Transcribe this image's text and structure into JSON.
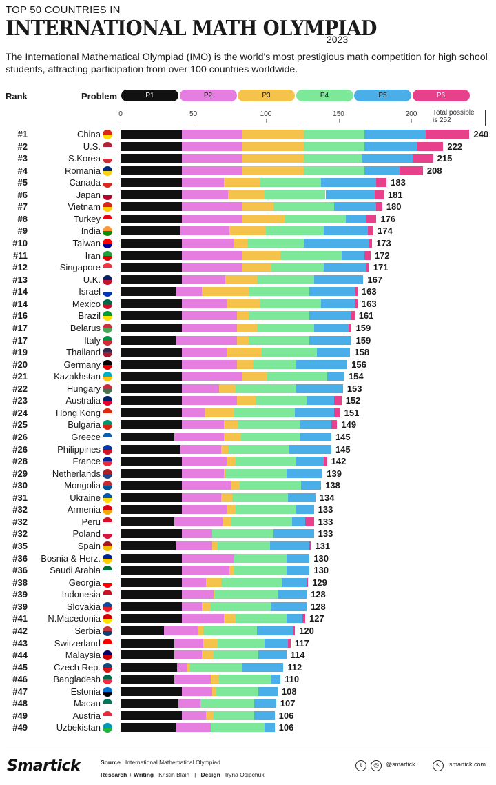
{
  "header": {
    "pre_title": "TOP 50 COUNTRIES IN",
    "title": "INTERNATIONAL MATH OLYMPIAD",
    "year": "2023",
    "intro": "The International Mathematical Olympiad (IMO) is the world's most prestigious math competition for high school students, attracting participation from over 100 countries worldwide."
  },
  "legend": {
    "rank_label": "Rank",
    "problem_label": "Problem",
    "items": [
      {
        "label": "P1",
        "color": "#111111",
        "text_color": "#ffffff"
      },
      {
        "label": "P2",
        "color": "#e57ee0",
        "text_color": "#1a1a1a"
      },
      {
        "label": "P3",
        "color": "#f5c24c",
        "text_color": "#1a1a1a"
      },
      {
        "label": "P4",
        "color": "#7ee89a",
        "text_color": "#1a1a1a"
      },
      {
        "label": "P5",
        "color": "#4aaee8",
        "text_color": "#1a1a1a"
      },
      {
        "label": "P6",
        "color": "#e8418c",
        "text_color": "#ffffff"
      }
    ]
  },
  "chart_data": {
    "type": "bar",
    "orientation": "horizontal",
    "stacked": true,
    "title": "INTERNATIONAL MATH OLYMPIAD",
    "subtitle": "TOP 50 COUNTRIES IN",
    "x_ticks": [
      "0",
      "50",
      "100",
      "150",
      "200"
    ],
    "xlim": [
      0,
      252
    ],
    "total_note_line1": "Total possible",
    "total_note_line2": "is 252",
    "series_names": [
      "P1",
      "P2",
      "P3",
      "P4",
      "P5",
      "P6"
    ],
    "rows": [
      {
        "rank": "#1",
        "country": "China",
        "flag": [
          "#de2910",
          "#ffde00"
        ],
        "values": [
          42,
          42,
          42,
          42,
          42,
          30
        ],
        "total": "240"
      },
      {
        "rank": "#2",
        "country": "U.S.",
        "flag": [
          "#b22234",
          "#ffffff"
        ],
        "values": [
          42,
          42,
          42,
          42,
          36,
          18
        ],
        "total": "222"
      },
      {
        "rank": "#3",
        "country": "S.Korea",
        "flag": [
          "#ffffff",
          "#cd2e3a"
        ],
        "values": [
          42,
          42,
          42,
          40,
          35,
          14
        ],
        "total": "215"
      },
      {
        "rank": "#4",
        "country": "Romania",
        "flag": [
          "#002b7f",
          "#fcd116"
        ],
        "values": [
          42,
          42,
          42,
          42,
          24,
          16
        ],
        "total": "208"
      },
      {
        "rank": "#5",
        "country": "Canada",
        "flag": [
          "#ffffff",
          "#d52b1e"
        ],
        "values": [
          42,
          29,
          25,
          42,
          38,
          7
        ],
        "total": "183"
      },
      {
        "rank": "#6",
        "country": "Japan",
        "flag": [
          "#ffffff",
          "#bc002d"
        ],
        "values": [
          42,
          32,
          25,
          42,
          34,
          6
        ],
        "total": "181"
      },
      {
        "rank": "#7",
        "country": "Vietnam",
        "flag": [
          "#da251d",
          "#ffcd00"
        ],
        "values": [
          42,
          42,
          21,
          42,
          29,
          4
        ],
        "total": "180"
      },
      {
        "rank": "#8",
        "country": "Turkey",
        "flag": [
          "#e30a17",
          "#ffffff"
        ],
        "values": [
          42,
          42,
          29,
          42,
          14,
          7
        ],
        "total": "176"
      },
      {
        "rank": "#9",
        "country": "India",
        "flag": [
          "#ff9933",
          "#138808"
        ],
        "values": [
          41,
          34,
          25,
          40,
          30,
          4
        ],
        "total": "174"
      },
      {
        "rank": "#10",
        "country": "Taiwan",
        "flag": [
          "#fe0000",
          "#000095"
        ],
        "values": [
          42,
          36,
          9,
          39,
          45,
          2
        ],
        "total": "173"
      },
      {
        "rank": "#11",
        "country": "Iran",
        "flag": [
          "#239f40",
          "#da0000"
        ],
        "values": [
          42,
          42,
          26,
          42,
          16,
          4
        ],
        "total": "172"
      },
      {
        "rank": "#12",
        "country": "Singapore",
        "flag": [
          "#ef3340",
          "#ffffff"
        ],
        "values": [
          42,
          42,
          20,
          36,
          29,
          2
        ],
        "total": "171"
      },
      {
        "rank": "#13",
        "country": "U.K.",
        "flag": [
          "#012169",
          "#c8102e"
        ],
        "values": [
          42,
          30,
          22,
          39,
          34,
          0
        ],
        "total": "167"
      },
      {
        "rank": "#14",
        "country": "Israel",
        "flag": [
          "#ffffff",
          "#0038b8"
        ],
        "values": [
          38,
          18,
          32,
          42,
          31,
          2
        ],
        "total": "163"
      },
      {
        "rank": "#14",
        "country": "Mexico",
        "flag": [
          "#006847",
          "#ce1126"
        ],
        "values": [
          42,
          31,
          23,
          42,
          23,
          2
        ],
        "total": "163"
      },
      {
        "rank": "#16",
        "country": "Brazil",
        "flag": [
          "#009c3b",
          "#ffdf00"
        ],
        "values": [
          42,
          38,
          8,
          42,
          29,
          2
        ],
        "total": "161"
      },
      {
        "rank": "#17",
        "country": "Belarus",
        "flag": [
          "#c8313e",
          "#4aa657"
        ],
        "values": [
          42,
          38,
          14,
          39,
          24,
          2
        ],
        "total": "159"
      },
      {
        "rank": "#17",
        "country": "Italy",
        "flag": [
          "#009246",
          "#ce2b37"
        ],
        "values": [
          38,
          42,
          8,
          42,
          29,
          0
        ],
        "total": "159"
      },
      {
        "rank": "#19",
        "country": "Thailand",
        "flag": [
          "#2d2a4a",
          "#a51931"
        ],
        "values": [
          42,
          31,
          24,
          38,
          23,
          0
        ],
        "total": "158"
      },
      {
        "rank": "#20",
        "country": "Germany",
        "flag": [
          "#000000",
          "#dd0000"
        ],
        "values": [
          42,
          38,
          11,
          30,
          35,
          0
        ],
        "total": "156"
      },
      {
        "rank": "#21",
        "country": "Kazakhstan",
        "flag": [
          "#00afca",
          "#fec50c"
        ],
        "values": [
          42,
          42,
          17,
          41,
          12,
          0
        ],
        "total": "154"
      },
      {
        "rank": "#22",
        "country": "Hungary",
        "flag": [
          "#cd2a3e",
          "#436f4d"
        ],
        "values": [
          42,
          26,
          11,
          42,
          32,
          0
        ],
        "total": "153"
      },
      {
        "rank": "#23",
        "country": "Australia",
        "flag": [
          "#012169",
          "#e4002b"
        ],
        "values": [
          42,
          38,
          13,
          35,
          19,
          5
        ],
        "total": "152"
      },
      {
        "rank": "#24",
        "country": "Hong Kong",
        "flag": [
          "#de2910",
          "#ffffff"
        ],
        "values": [
          42,
          16,
          20,
          42,
          27,
          4
        ],
        "total": "151"
      },
      {
        "rank": "#25",
        "country": "Bulgaria",
        "flag": [
          "#00966e",
          "#d62612"
        ],
        "values": [
          42,
          29,
          10,
          42,
          22,
          4
        ],
        "total": "149"
      },
      {
        "rank": "#26",
        "country": "Greece",
        "flag": [
          "#0d5eaf",
          "#ffffff"
        ],
        "values": [
          37,
          34,
          12,
          40,
          22,
          0
        ],
        "total": "145"
      },
      {
        "rank": "#26",
        "country": "Philippines",
        "flag": [
          "#0038a8",
          "#ce1126"
        ],
        "values": [
          41,
          28,
          5,
          42,
          29,
          0
        ],
        "total": "145"
      },
      {
        "rank": "#28",
        "country": "France",
        "flag": [
          "#002395",
          "#ed2939"
        ],
        "values": [
          42,
          31,
          6,
          42,
          19,
          2
        ],
        "total": "142"
      },
      {
        "rank": "#29",
        "country": "Netherlands",
        "flag": [
          "#ae1c28",
          "#21468b"
        ],
        "values": [
          42,
          29,
          1,
          42,
          25,
          0
        ],
        "total": "139"
      },
      {
        "rank": "#30",
        "country": "Mongolia",
        "flag": [
          "#c4272f",
          "#015197"
        ],
        "values": [
          42,
          34,
          6,
          42,
          14,
          0
        ],
        "total": "138"
      },
      {
        "rank": "#31",
        "country": "Ukraine",
        "flag": [
          "#0057b7",
          "#ffd700"
        ],
        "values": [
          42,
          27,
          8,
          38,
          19,
          0
        ],
        "total": "134"
      },
      {
        "rank": "#32",
        "country": "Armenia",
        "flag": [
          "#d90012",
          "#f2a800"
        ],
        "values": [
          42,
          31,
          6,
          42,
          12,
          0
        ],
        "total": "133"
      },
      {
        "rank": "#32",
        "country": "Peru",
        "flag": [
          "#d91023",
          "#ffffff"
        ],
        "values": [
          37,
          33,
          6,
          42,
          9,
          6
        ],
        "total": "133"
      },
      {
        "rank": "#32",
        "country": "Poland",
        "flag": [
          "#ffffff",
          "#dc143c"
        ],
        "values": [
          42,
          21,
          0,
          42,
          28,
          0
        ],
        "total": "133"
      },
      {
        "rank": "#35",
        "country": "Spain",
        "flag": [
          "#aa151b",
          "#f1bf00"
        ],
        "values": [
          38,
          25,
          4,
          36,
          27,
          1
        ],
        "total": "131"
      },
      {
        "rank": "#36",
        "country": "Bosnia & Herz.",
        "flag": [
          "#002395",
          "#fecb00"
        ],
        "values": [
          42,
          36,
          0,
          36,
          16,
          0
        ],
        "total": "130"
      },
      {
        "rank": "#36",
        "country": "Saudi Arabia",
        "flag": [
          "#006c35",
          "#ffffff"
        ],
        "values": [
          42,
          33,
          3,
          36,
          16,
          0
        ],
        "total": "130"
      },
      {
        "rank": "#38",
        "country": "Georgia",
        "flag": [
          "#ffffff",
          "#ff0000"
        ],
        "values": [
          42,
          17,
          10,
          42,
          17,
          1
        ],
        "total": "129"
      },
      {
        "rank": "#39",
        "country": "Indonesia",
        "flag": [
          "#ce1126",
          "#ffffff"
        ],
        "values": [
          42,
          22,
          1,
          43,
          20,
          0
        ],
        "total": "128"
      },
      {
        "rank": "#39",
        "country": "Slovakia",
        "flag": [
          "#0b4ea2",
          "#ee1c25"
        ],
        "values": [
          42,
          14,
          6,
          42,
          24,
          0
        ],
        "total": "128"
      },
      {
        "rank": "#41",
        "country": "N.Macedonia",
        "flag": [
          "#d20000",
          "#ffe600"
        ],
        "values": [
          42,
          29,
          8,
          35,
          11,
          2
        ],
        "total": "127"
      },
      {
        "rank": "#42",
        "country": "Serbia",
        "flag": [
          "#c6363c",
          "#0c4076"
        ],
        "values": [
          30,
          23,
          4,
          37,
          25,
          1
        ],
        "total": "120"
      },
      {
        "rank": "#43",
        "country": "Switzerland",
        "flag": [
          "#ff0000",
          "#ffffff"
        ],
        "values": [
          37,
          20,
          10,
          32,
          16,
          2
        ],
        "total": "117"
      },
      {
        "rank": "#44",
        "country": "Malaysia",
        "flag": [
          "#010066",
          "#cc0001"
        ],
        "values": [
          37,
          19,
          8,
          31,
          19,
          0
        ],
        "total": "114"
      },
      {
        "rank": "#45",
        "country": "Czech Rep.",
        "flag": [
          "#11457e",
          "#d7141a"
        ],
        "values": [
          39,
          7,
          2,
          36,
          28,
          0
        ],
        "total": "112"
      },
      {
        "rank": "#46",
        "country": "Bangladesh",
        "flag": [
          "#006a4e",
          "#f42a41"
        ],
        "values": [
          37,
          25,
          6,
          36,
          6,
          0
        ],
        "total": "110"
      },
      {
        "rank": "#47",
        "country": "Estonia",
        "flag": [
          "#0072ce",
          "#000000"
        ],
        "values": [
          42,
          21,
          3,
          29,
          13,
          0
        ],
        "total": "108"
      },
      {
        "rank": "#48",
        "country": "Macau",
        "flag": [
          "#00785e",
          "#ffffff"
        ],
        "values": [
          40,
          15,
          0,
          37,
          15,
          0
        ],
        "total": "107"
      },
      {
        "rank": "#49",
        "country": "Austria",
        "flag": [
          "#ed2939",
          "#ffffff"
        ],
        "values": [
          42,
          17,
          5,
          28,
          14,
          0
        ],
        "total": "106"
      },
      {
        "rank": "#49",
        "country": "Uzbekistan",
        "flag": [
          "#0099b5",
          "#1eb53a"
        ],
        "values": [
          38,
          24,
          0,
          37,
          7,
          0
        ],
        "total": "106"
      }
    ]
  },
  "footer": {
    "logo": "Smartick",
    "source_label": "Source",
    "source_value": "International Mathematical Olympiad",
    "research_label": "Research + Writing",
    "research_value": "Kristin Blain",
    "separator": "|",
    "design_label": "Design",
    "design_value": "Iryna Osipchuk",
    "social_handle": "@smartick",
    "website": "smartick.com"
  }
}
